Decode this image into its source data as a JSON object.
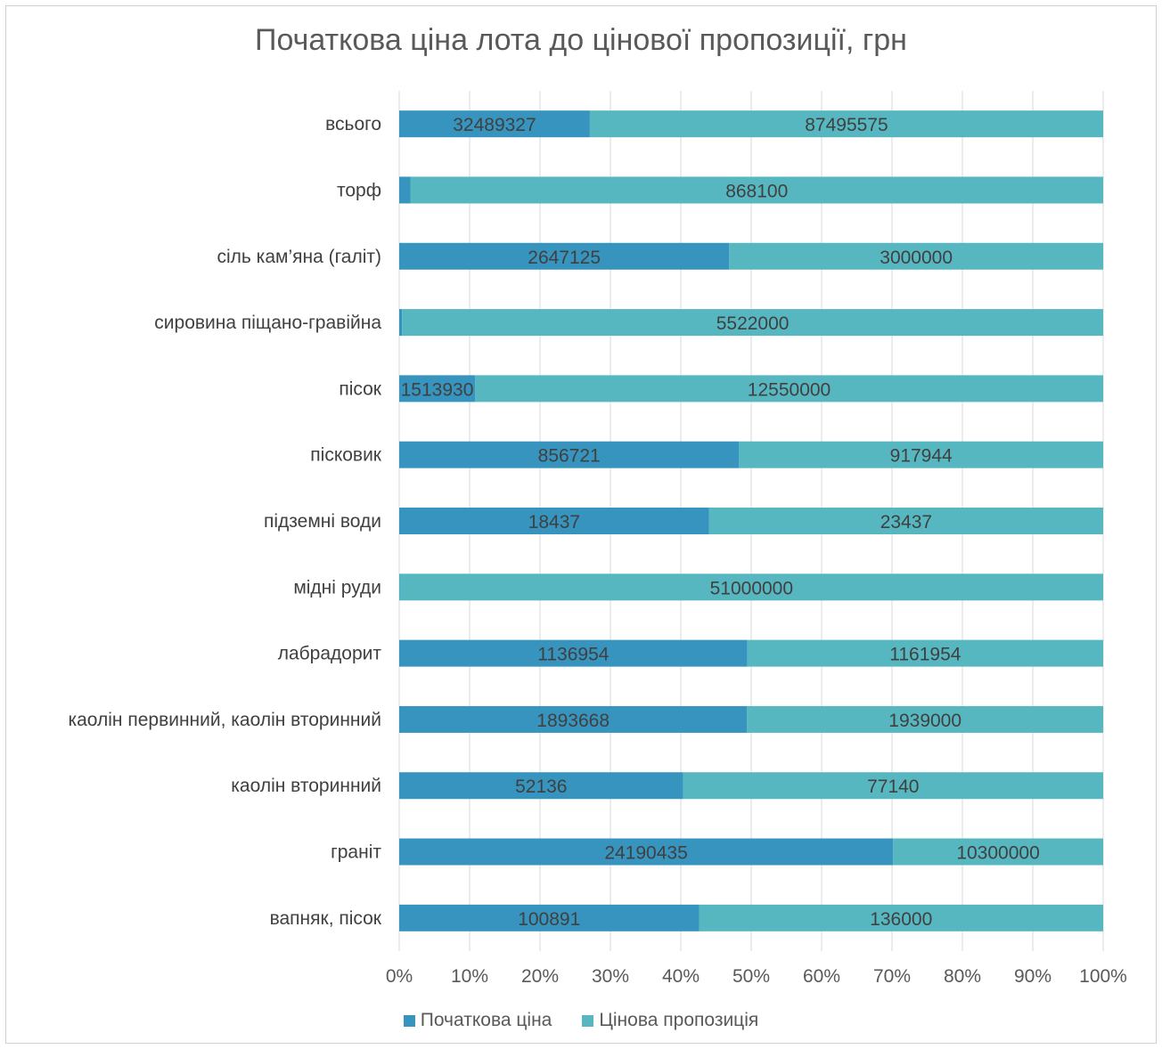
{
  "chart_data": {
    "type": "bar",
    "orientation": "horizontal",
    "stacking": "percent",
    "title": "Початкова ціна лота до цінової пропозиції, грн",
    "xlabel": "",
    "ylabel": "",
    "xlim": [
      0,
      100
    ],
    "x_ticks": [
      "0%",
      "10%",
      "20%",
      "30%",
      "40%",
      "50%",
      "60%",
      "70%",
      "80%",
      "90%",
      "100%"
    ],
    "grid": "vertical",
    "legend_position": "bottom",
    "categories": [
      "всього",
      "торф",
      "сіль кам’яна (галіт)",
      "сировина піщано-гравійна",
      "пісок",
      "пісковик",
      "підземні води",
      "мідні руди",
      "лабрадорит",
      "каолін первинний, каолін вторинний",
      "каолін вторинний",
      "граніт",
      "вапняк, пісок"
    ],
    "series": [
      {
        "name": "Початкова ціна",
        "color": "#3694be",
        "values": [
          32489327,
          13954,
          2647125,
          22509,
          1513930,
          856721,
          18437,
          42567,
          1136954,
          1893668,
          52136,
          24190435,
          100891
        ]
      },
      {
        "name": "Цінова пропозиція",
        "color": "#57b7c1",
        "values": [
          87495575,
          868100,
          3000000,
          5522000,
          12550000,
          917944,
          23437,
          51000000,
          1161954,
          1939000,
          77140,
          10300000,
          136000
        ]
      }
    ]
  }
}
